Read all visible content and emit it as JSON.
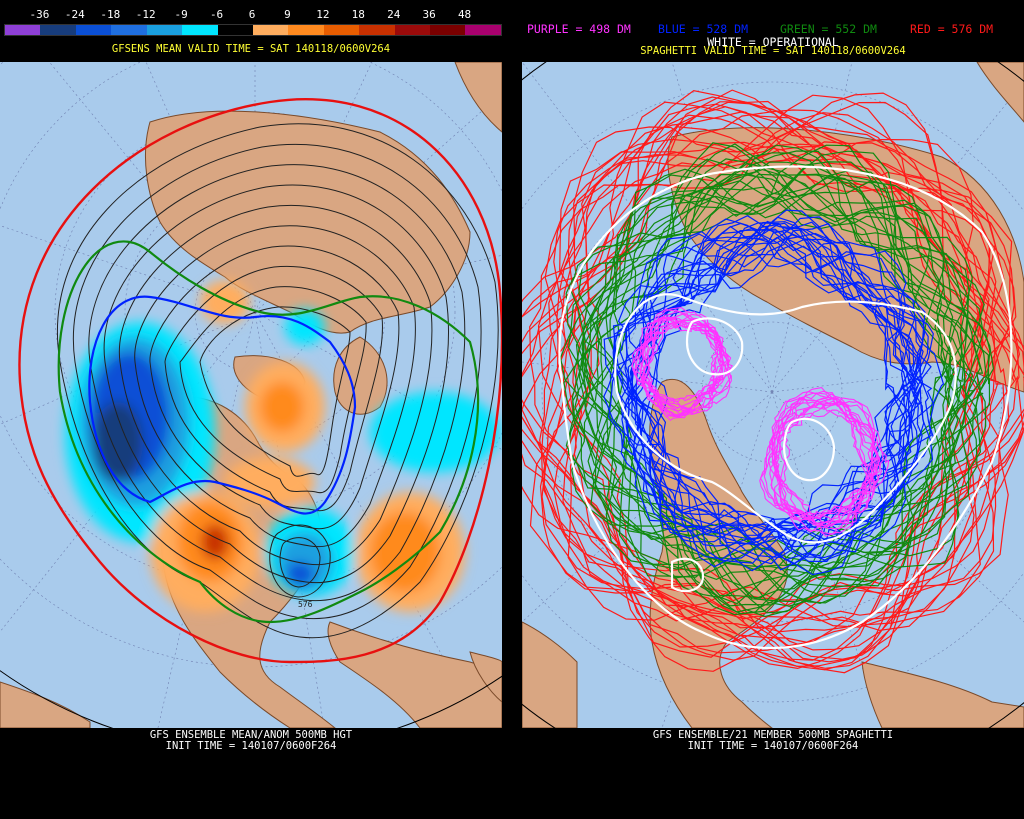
{
  "left": {
    "legend_values": [
      "-36",
      "-24",
      "-18",
      "-12",
      "-9",
      "-6",
      "6",
      "9",
      "12",
      "18",
      "24",
      "36",
      "48"
    ],
    "legend_colors": [
      "#8e3fd6",
      "#173c7c",
      "#0a4fd6",
      "#1f6fe0",
      "#1aa0e0",
      "#00e6ff",
      "#000000",
      "#ffad5e",
      "#ff8a1f",
      "#e85d00",
      "#c83000",
      "#9a0a0a",
      "#7a0000",
      "#a8006e"
    ],
    "valid_time": "GFSENS MEAN VALID TIME = SAT 140118/0600V264",
    "footer_line1": "GFS ENSEMBLE MEAN/ANOM 500MB HGT",
    "footer_line2": "INIT TIME = 140107/0600F264",
    "contour_label": "576"
  },
  "right": {
    "legend_purple": "PURPLE = 498 DM",
    "legend_blue": "BLUE = 528 DM",
    "legend_green": "GREEN = 552 DM",
    "legend_red": "RED = 576 DM",
    "legend_white": "WHITE = OPERATIONAL",
    "valid_time": "SPAGHETTI VALID TIME = SAT 140118/0600V264",
    "footer_line1": "GFS ENSEMBLE/21 MEMBER 500MB SPAGHETTI",
    "footer_line2": "INIT TIME = 140107/0600F264"
  },
  "colors": {
    "ocean": "#a9cbec",
    "land": "#d9a682",
    "coast": "#7a4a2a",
    "title_yellow": "#ffff33",
    "purple": "#ff33ff",
    "blue": "#0022ff",
    "green": "#108a10",
    "red": "#ff1a1a",
    "white": "#ffffff"
  }
}
